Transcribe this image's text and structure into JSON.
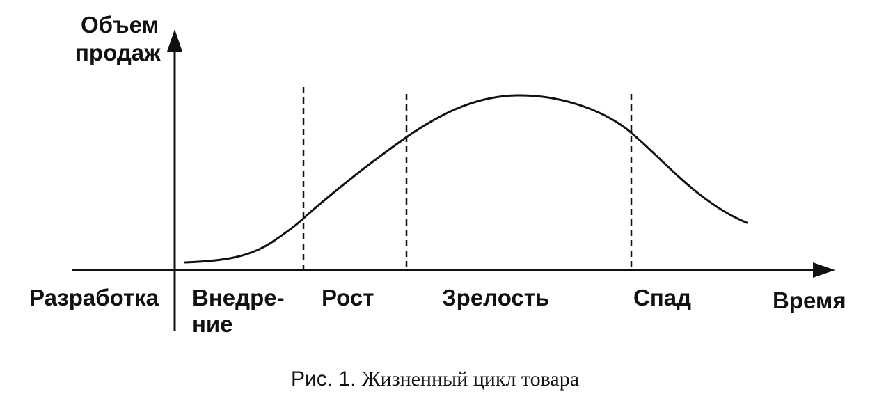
{
  "axes": {
    "y_label_line1": "Объем",
    "y_label_line2": "продаж",
    "x_label": "Время"
  },
  "stages": {
    "development": "Разработка",
    "introduction_line1": "Внедре-",
    "introduction_line2": "ние",
    "growth": "Рост",
    "maturity": "Зрелость",
    "decline": "Спад"
  },
  "caption": {
    "prefix": "Рис. 1.",
    "text": "Жизненный цикл товара"
  },
  "colors": {
    "ink": "#111111",
    "background": "#ffffff"
  }
}
